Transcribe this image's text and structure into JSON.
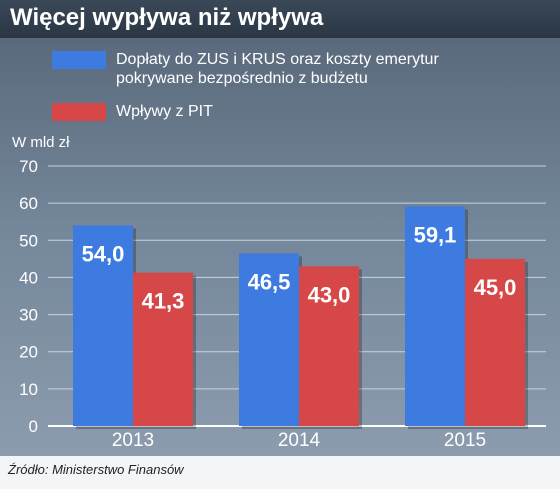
{
  "header": {
    "title": "Więcej wypływa niż wpływa"
  },
  "legend": [
    {
      "label_line1": "Dopłaty do ZUS i KRUS oraz koszty emerytur",
      "label_line2": "pokrywane bezpośrednio z budżetu",
      "color": "#3e7be0"
    },
    {
      "label_line1": "Wpływy z PIT",
      "label_line2": "",
      "color": "#d64848"
    }
  ],
  "source": "Źródło: Ministerstwo Finansów",
  "chart_data": {
    "type": "bar",
    "categories": [
      "2013",
      "2014",
      "2015"
    ],
    "series": [
      {
        "name": "Dopłaty do ZUS i KRUS oraz koszty emerytur pokrywane bezpośrednio z budżetu",
        "values": [
          54.0,
          46.5,
          59.1
        ],
        "labels": [
          "54,0",
          "46,5",
          "59,1"
        ],
        "color": "#3e7be0"
      },
      {
        "name": "Wpływy z PIT",
        "values": [
          41.3,
          43.0,
          45.0
        ],
        "labels": [
          "41,3",
          "43,0",
          "45,0"
        ],
        "color": "#d64848"
      }
    ],
    "ylabel": "W mld zł",
    "ylim": [
      0,
      70
    ],
    "yticks": [
      0,
      10,
      20,
      30,
      40,
      50,
      60,
      70
    ],
    "grid": true
  }
}
